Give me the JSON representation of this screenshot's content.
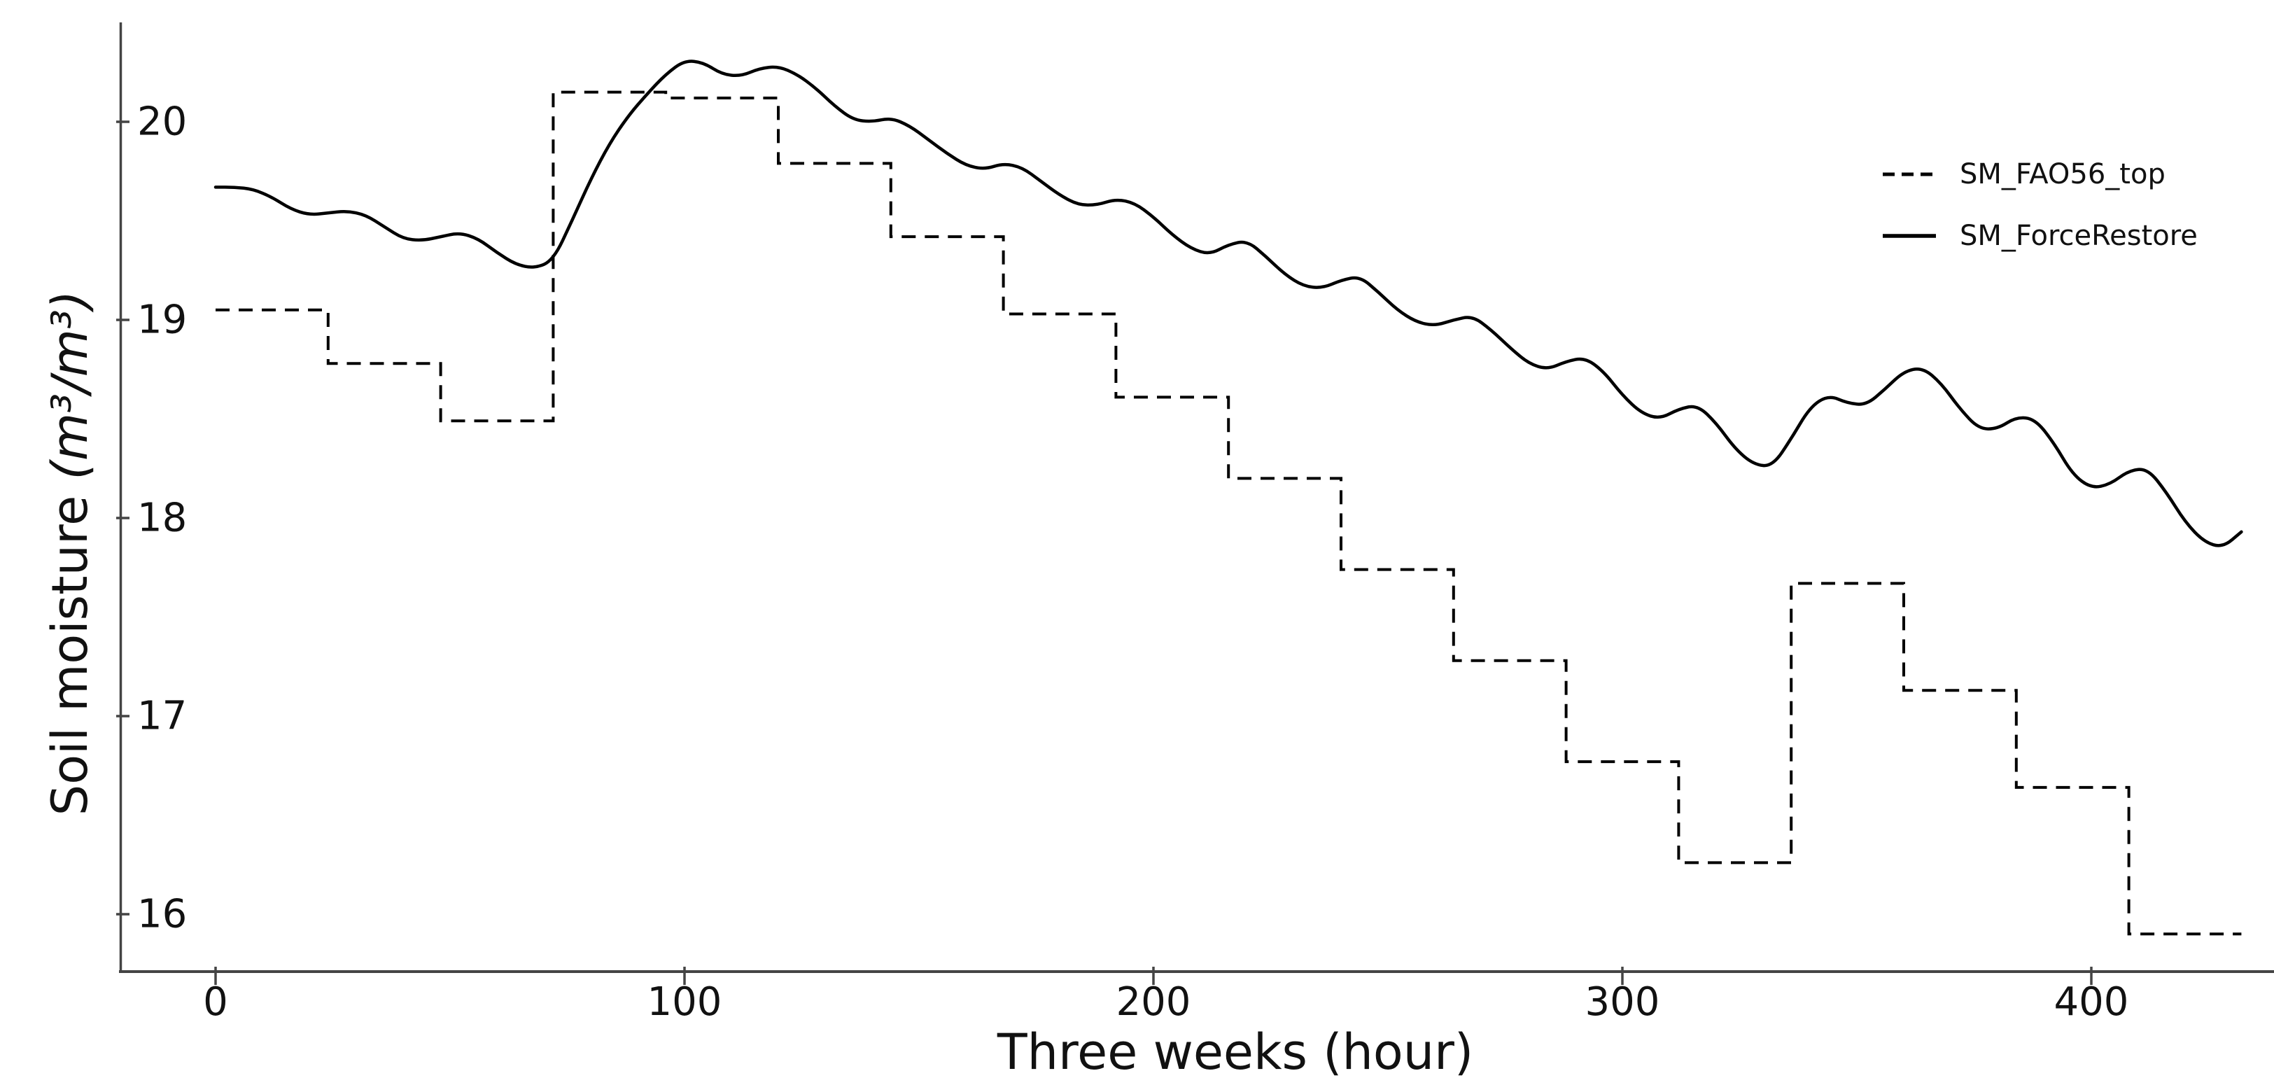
{
  "figure": {
    "background_color": "#ffffff",
    "line_color": "#000000",
    "axis_color": "#444444",
    "text_color": "#111111"
  },
  "axes": {
    "xlabel": "Three weeks (hour)",
    "ylabel": "Soil moisture (m³/m³)",
    "ylabel_text": "Soil moisture ",
    "ylabel_units": "(m³/m³)",
    "x_ticks": [
      0,
      100,
      200,
      300,
      400
    ],
    "y_ticks": [
      16,
      17,
      18,
      19,
      20
    ]
  },
  "chart_data": {
    "type": "line",
    "title": "",
    "xlabel": "Three weeks (hour)",
    "ylabel": "Soil moisture (m³/m³)",
    "xlim": [
      -21.6,
      453.6
    ],
    "ylim": [
      15.68,
      20.54
    ],
    "grid": false,
    "legend_position": "upper right",
    "x_tick_labels": [
      "0",
      "100",
      "200",
      "300",
      "400"
    ],
    "y_tick_labels": [
      "16",
      "17",
      "18",
      "19",
      "20"
    ],
    "series": [
      {
        "name": "SM_FAO56_top",
        "style": "dashed",
        "color": "#000000",
        "step": "post",
        "x": [
          0,
          24,
          48,
          72,
          96,
          120,
          144,
          168,
          192,
          216,
          240,
          264,
          288,
          312,
          336,
          360,
          384,
          408
        ],
        "y": [
          19.05,
          18.78,
          18.49,
          20.15,
          20.12,
          19.79,
          19.42,
          19.03,
          18.61,
          18.2,
          17.74,
          17.28,
          16.77,
          16.26,
          17.67,
          17.13,
          16.64,
          15.9
        ],
        "x_end": 432
      },
      {
        "name": "SM_ForceRestore",
        "style": "solid",
        "color": "#000000",
        "x": [
          0,
          4,
          8,
          12,
          16,
          20,
          24,
          28,
          32,
          36,
          40,
          44,
          48,
          52,
          56,
          60,
          64,
          68,
          72,
          76,
          80,
          84,
          88,
          92,
          96,
          100,
          104,
          108,
          112,
          116,
          120,
          124,
          128,
          132,
          136,
          140,
          144,
          148,
          152,
          156,
          160,
          164,
          168,
          172,
          176,
          180,
          184,
          188,
          192,
          196,
          200,
          204,
          208,
          212,
          216,
          220,
          224,
          228,
          232,
          236,
          240,
          244,
          248,
          252,
          256,
          260,
          264,
          268,
          272,
          276,
          280,
          284,
          288,
          292,
          296,
          300,
          304,
          308,
          312,
          316,
          320,
          324,
          328,
          332,
          336,
          340,
          344,
          348,
          352,
          356,
          360,
          364,
          368,
          372,
          376,
          380,
          384,
          388,
          392,
          396,
          400,
          404,
          408,
          412,
          416,
          420,
          424,
          428,
          432
        ],
        "y": [
          19.67,
          19.67,
          19.66,
          19.62,
          19.56,
          19.53,
          19.54,
          19.55,
          19.53,
          19.47,
          19.41,
          19.4,
          19.42,
          19.44,
          19.41,
          19.34,
          19.28,
          19.26,
          19.3,
          19.5,
          19.71,
          19.89,
          20.03,
          20.14,
          20.24,
          20.31,
          20.3,
          20.24,
          20.23,
          20.27,
          20.28,
          20.24,
          20.17,
          20.08,
          20.01,
          20.0,
          20.02,
          19.98,
          19.91,
          19.84,
          19.78,
          19.76,
          19.79,
          19.77,
          19.7,
          19.63,
          19.58,
          19.58,
          19.61,
          19.59,
          19.52,
          19.43,
          19.36,
          19.33,
          19.38,
          19.4,
          19.32,
          19.23,
          19.17,
          19.16,
          19.2,
          19.22,
          19.14,
          19.05,
          18.99,
          18.97,
          19.0,
          19.02,
          18.95,
          18.86,
          18.78,
          18.75,
          18.79,
          18.81,
          18.74,
          18.62,
          18.53,
          18.5,
          18.55,
          18.57,
          18.48,
          18.35,
          18.27,
          18.26,
          18.4,
          18.56,
          18.62,
          18.58,
          18.57,
          18.65,
          18.74,
          18.76,
          18.68,
          18.55,
          18.45,
          18.45,
          18.51,
          18.5,
          18.38,
          18.22,
          18.15,
          18.17,
          18.24,
          18.25,
          18.13,
          17.98,
          17.88,
          17.85,
          17.93
        ]
      }
    ]
  },
  "legend": {
    "entries": [
      {
        "label": "SM_FAO56_top",
        "line_style": "dashed"
      },
      {
        "label": "SM_ForceRestore",
        "line_style": "solid"
      }
    ]
  }
}
